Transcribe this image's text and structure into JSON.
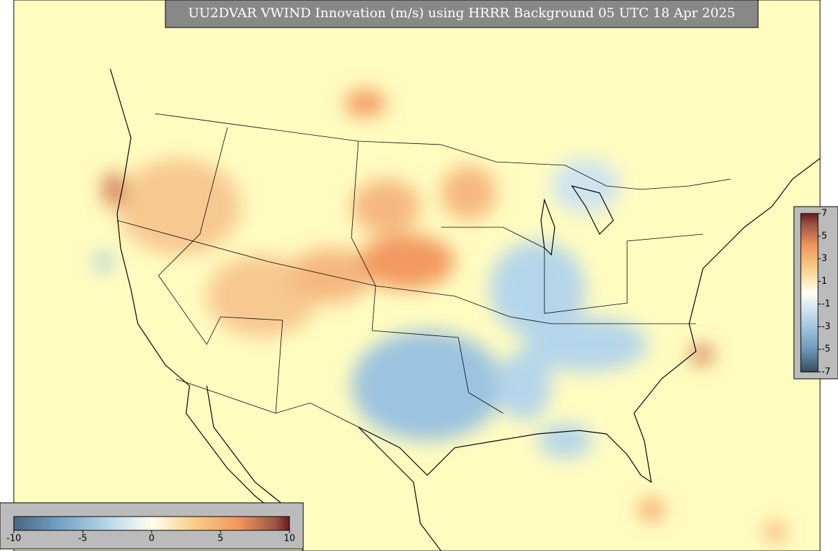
{
  "title": "UU2DVAR VWIND Innovation (m/s) using HRRR Background 05 UTC 18 Apr 2025",
  "colorbar_bottom": {
    "range": [
      -10,
      10
    ],
    "ticks": [
      -10,
      -5,
      0,
      5,
      10
    ]
  },
  "colorbar_right": {
    "range": [
      -7,
      7
    ],
    "ticks": [
      7,
      5,
      3,
      1,
      -1,
      -3,
      -5,
      -7
    ]
  }
}
